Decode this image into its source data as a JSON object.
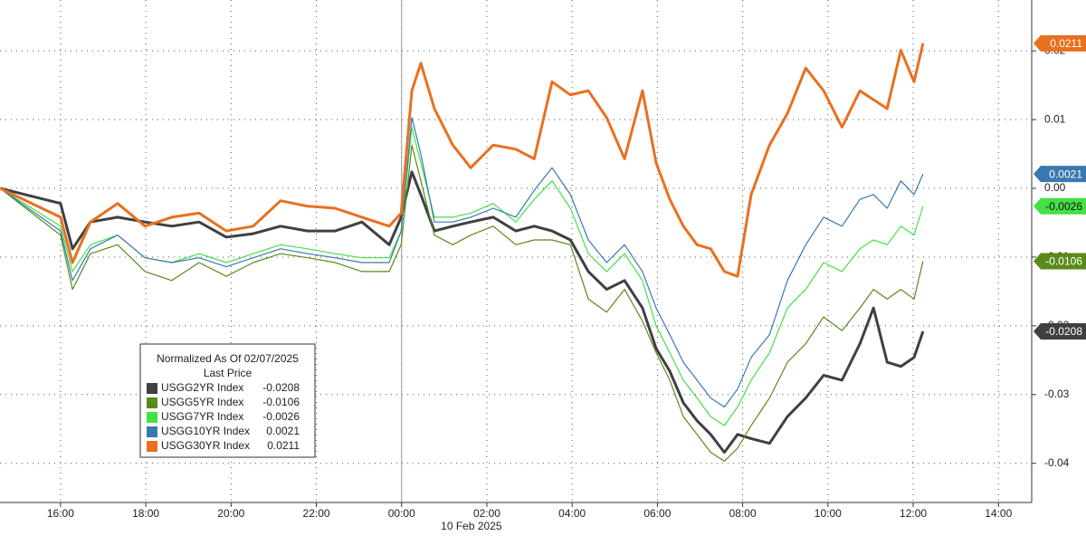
{
  "chart_data": {
    "type": "line",
    "date_label": "10 Feb 2025",
    "legend_title": "Normalized As Of 02/07/2025",
    "legend_subtitle": "Last Price",
    "x": [
      14.58,
      16.0,
      16.28,
      16.7,
      17.34,
      17.98,
      18.61,
      19.25,
      19.89,
      20.52,
      21.16,
      21.8,
      22.44,
      23.07,
      23.71,
      23.99,
      24.24,
      24.45,
      24.77,
      25.2,
      25.62,
      26.15,
      26.68,
      27.11,
      27.53,
      27.96,
      28.38,
      28.81,
      29.23,
      29.65,
      29.97,
      30.29,
      30.61,
      30.93,
      31.25,
      31.57,
      31.88,
      32.2,
      32.63,
      33.05,
      33.48,
      33.9,
      34.33,
      34.75,
      35.07,
      35.39,
      35.71,
      36.02,
      36.23
    ],
    "series": [
      {
        "name": "USGG2YR Index",
        "color": "#404040",
        "width": 3,
        "values": [
          0,
          -0.0022,
          -0.0088,
          -0.0049,
          -0.0042,
          -0.0049,
          -0.0055,
          -0.0049,
          -0.0071,
          -0.0066,
          -0.0055,
          -0.0062,
          -0.0062,
          -0.0049,
          -0.0082,
          -0.0042,
          0.0024,
          -0.0009,
          -0.0062,
          -0.0055,
          -0.0049,
          -0.0042,
          -0.0062,
          -0.0055,
          -0.0062,
          -0.0075,
          -0.0121,
          -0.0147,
          -0.0134,
          -0.0174,
          -0.0233,
          -0.0266,
          -0.0312,
          -0.0338,
          -0.0358,
          -0.0384,
          -0.0358,
          -0.0364,
          -0.0371,
          -0.0332,
          -0.0305,
          -0.0272,
          -0.0279,
          -0.0226,
          -0.0174,
          -0.0253,
          -0.0259,
          -0.0246,
          -0.0208
        ]
      },
      {
        "name": "USGG5YR Index",
        "color": "#5a8a1a",
        "width": 1.2,
        "values": [
          0,
          -0.0068,
          -0.0147,
          -0.0095,
          -0.0082,
          -0.0121,
          -0.0134,
          -0.0108,
          -0.0128,
          -0.0108,
          -0.0095,
          -0.0101,
          -0.0108,
          -0.0121,
          -0.0121,
          -0.0082,
          0.0063,
          0.0011,
          -0.0068,
          -0.0082,
          -0.0068,
          -0.0055,
          -0.0082,
          -0.0075,
          -0.0075,
          -0.0082,
          -0.0161,
          -0.018,
          -0.0147,
          -0.0193,
          -0.0239,
          -0.0279,
          -0.0332,
          -0.0358,
          -0.0384,
          -0.0397,
          -0.0378,
          -0.0345,
          -0.0305,
          -0.0253,
          -0.0226,
          -0.0187,
          -0.0207,
          -0.0174,
          -0.0147,
          -0.0161,
          -0.0147,
          -0.0161,
          -0.0106
        ]
      },
      {
        "name": "USGG7YR Index",
        "color": "#44e044",
        "width": 1.2,
        "values": [
          0,
          -0.0055,
          -0.0121,
          -0.0082,
          -0.0068,
          -0.0101,
          -0.0108,
          -0.0095,
          -0.0108,
          -0.0095,
          -0.0082,
          -0.0088,
          -0.0095,
          -0.0101,
          -0.0101,
          -0.0062,
          0.0089,
          0.0037,
          -0.0042,
          -0.0042,
          -0.0036,
          -0.0022,
          -0.0049,
          -0.0016,
          0.0011,
          -0.0029,
          -0.0095,
          -0.0121,
          -0.0095,
          -0.0134,
          -0.02,
          -0.0239,
          -0.0279,
          -0.0305,
          -0.0332,
          -0.0345,
          -0.0318,
          -0.0279,
          -0.0239,
          -0.0174,
          -0.0147,
          -0.0108,
          -0.0121,
          -0.0088,
          -0.0075,
          -0.0082,
          -0.0055,
          -0.0068,
          -0.0026
        ]
      },
      {
        "name": "USGG10YR Index",
        "color": "#3a78b0",
        "width": 1.2,
        "values": [
          0,
          -0.0062,
          -0.0134,
          -0.0088,
          -0.0068,
          -0.0101,
          -0.0108,
          -0.0101,
          -0.0114,
          -0.0101,
          -0.0088,
          -0.0095,
          -0.0101,
          -0.0108,
          -0.0108,
          -0.0062,
          0.0103,
          0.005,
          -0.0049,
          -0.0049,
          -0.0042,
          -0.0029,
          -0.0042,
          -0.0003,
          0.003,
          -0.0009,
          -0.0075,
          -0.0108,
          -0.0082,
          -0.0121,
          -0.0174,
          -0.0213,
          -0.0253,
          -0.0279,
          -0.0305,
          -0.0318,
          -0.0292,
          -0.0246,
          -0.0213,
          -0.0134,
          -0.0082,
          -0.0042,
          -0.0055,
          -0.0016,
          -0.0009,
          -0.0029,
          0.0011,
          -0.0009,
          0.0021
        ]
      },
      {
        "name": "USGG30YR Index",
        "color": "#e87020",
        "width": 3,
        "values": [
          0,
          -0.0042,
          -0.0108,
          -0.0049,
          -0.0022,
          -0.0055,
          -0.0042,
          -0.0036,
          -0.0062,
          -0.0055,
          -0.0018,
          -0.0026,
          -0.0029,
          -0.0042,
          -0.0055,
          -0.0036,
          0.0142,
          0.0182,
          0.0116,
          0.0063,
          0.003,
          0.0063,
          0.0057,
          0.0043,
          0.0155,
          0.0136,
          0.0142,
          0.0103,
          0.0043,
          0.0142,
          0.0037,
          -0.0016,
          -0.0055,
          -0.0082,
          -0.0088,
          -0.0121,
          -0.0128,
          -0.0009,
          0.0063,
          0.0109,
          0.0175,
          0.0142,
          0.0089,
          0.0142,
          0.0129,
          0.0116,
          0.0201,
          0.0155,
          0.0211
        ]
      }
    ],
    "xlim": [
      14.58,
      38.78
    ],
    "xticks": [
      {
        "value": 16,
        "label": "16:00"
      },
      {
        "value": 18,
        "label": "18:00"
      },
      {
        "value": 20,
        "label": "20:00"
      },
      {
        "value": 22,
        "label": "22:00"
      },
      {
        "value": 24,
        "label": "00:00"
      },
      {
        "value": 26,
        "label": "02:00"
      },
      {
        "value": 28,
        "label": "04:00"
      },
      {
        "value": 30,
        "label": "06:00"
      },
      {
        "value": 32,
        "label": "08:00"
      },
      {
        "value": 34,
        "label": "10:00"
      },
      {
        "value": 36,
        "label": "12:00"
      },
      {
        "value": 38,
        "label": "14:00"
      }
    ],
    "ylim": [
      -0.0457,
      0.0274
    ],
    "yticks": [
      0.02,
      0.01,
      {
        "value": 0,
        "label": "0.00"
      },
      -0.01,
      -0.02,
      -0.03,
      -0.04
    ],
    "grid": true
  }
}
